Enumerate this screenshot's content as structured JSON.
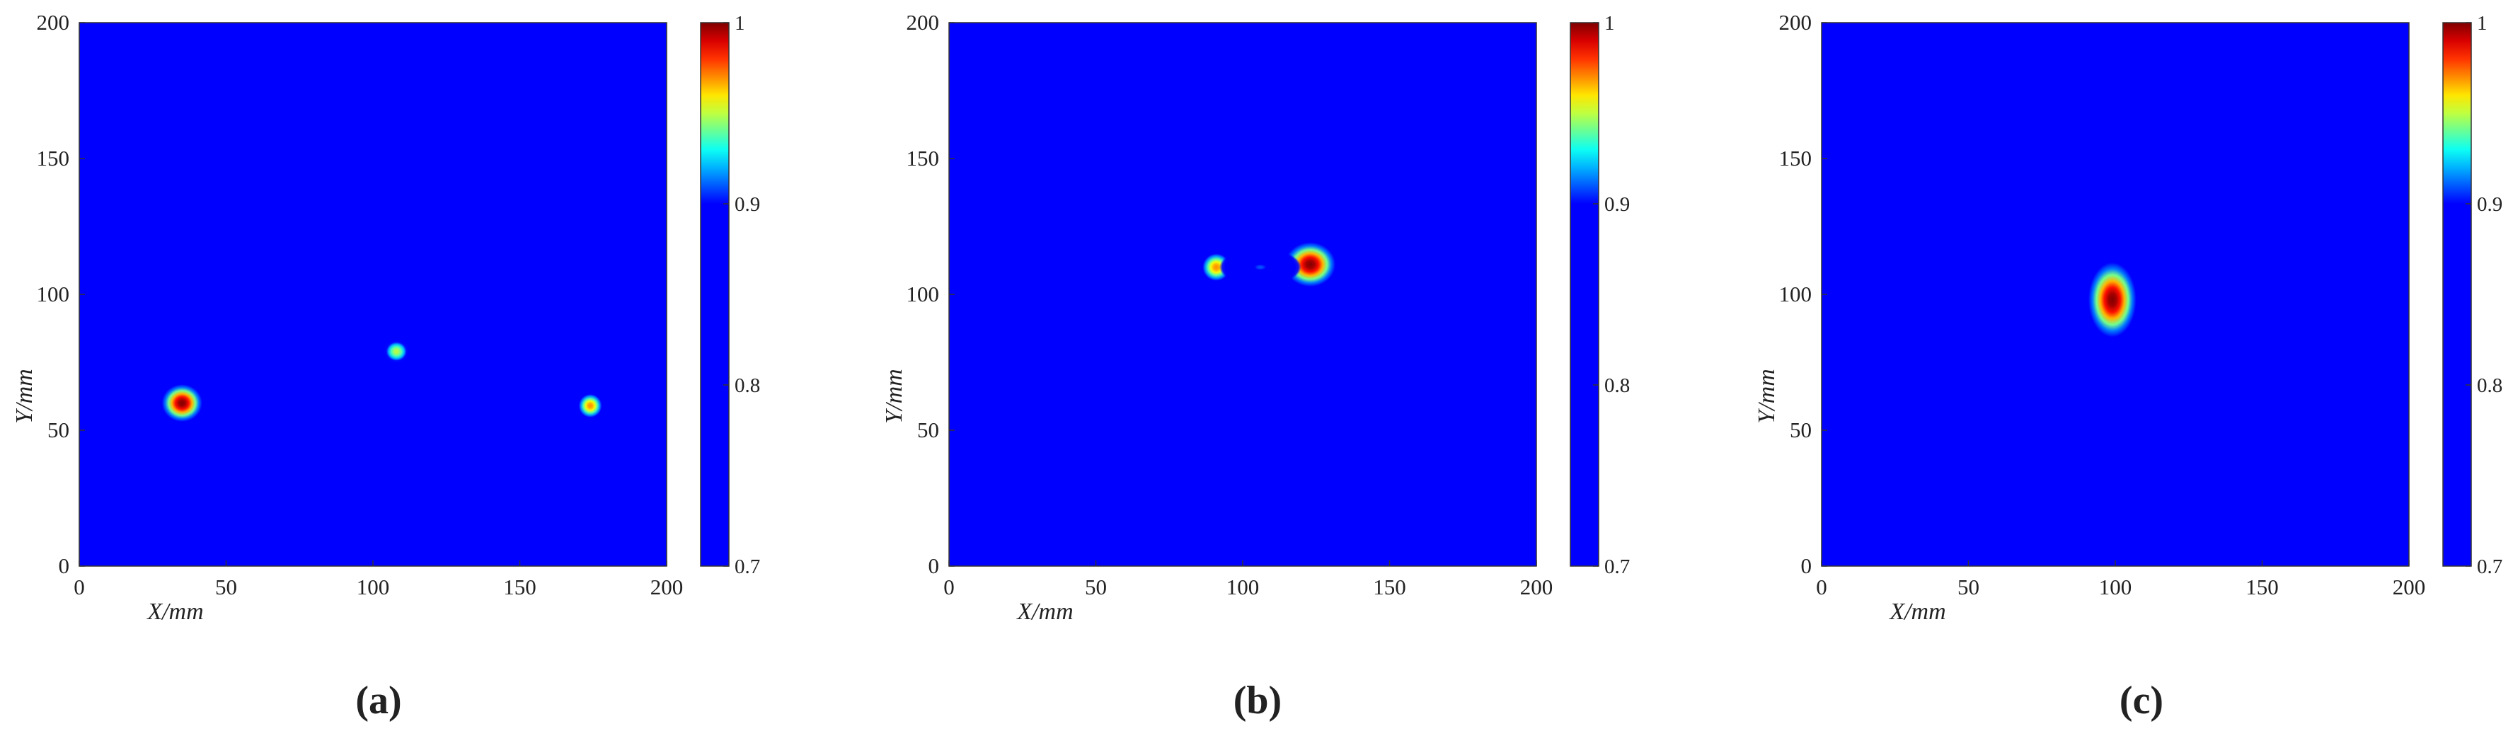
{
  "figure": {
    "panels": [
      {
        "caption": "(a)",
        "xlabel": "X/mm",
        "ylabel": "Y/mm"
      },
      {
        "caption": "(b)",
        "xlabel": "X/mm",
        "ylabel": "Y/mm"
      },
      {
        "caption": "(c)",
        "xlabel": "X/mm",
        "ylabel": "Y/mm"
      }
    ],
    "colors": {
      "background_field": "#00008b",
      "colormap": "jet"
    }
  },
  "chart_data": [
    {
      "type": "heatmap",
      "title": "",
      "xlabel": "X/mm",
      "ylabel": "Y/mm",
      "xlim": [
        0,
        200
      ],
      "ylim": [
        0,
        200
      ],
      "xticks": [
        0,
        50,
        100,
        150,
        200
      ],
      "yticks": [
        0,
        50,
        100,
        150,
        200
      ],
      "colorbar": {
        "range": [
          0.7,
          1
        ],
        "ticks": [
          0.7,
          0.8,
          0.9,
          1
        ],
        "tick_labels": [
          "0.7",
          "0.8",
          "0.9",
          "1"
        ],
        "colormap": "jet"
      },
      "background_value": 0.7,
      "blobs": [
        {
          "x": 35,
          "y": 60,
          "rx": 8,
          "ry": 8,
          "peak": 1.0
        },
        {
          "x": 108,
          "y": 79,
          "rx": 6,
          "ry": 6,
          "peak": 0.95
        },
        {
          "x": 174,
          "y": 59,
          "rx": 5.5,
          "ry": 6,
          "peak": 0.97
        }
      ]
    },
    {
      "type": "heatmap",
      "title": "",
      "xlabel": "X/mm",
      "ylabel": "Y/mm",
      "xlim": [
        0,
        200
      ],
      "ylim": [
        0,
        200
      ],
      "xticks": [
        0,
        50,
        100,
        150,
        200
      ],
      "yticks": [
        0,
        50,
        100,
        150,
        200
      ],
      "colorbar": {
        "range": [
          0.7,
          1
        ],
        "ticks": [
          0.7,
          0.8,
          0.9,
          1
        ],
        "tick_labels": [
          "0.7",
          "0.8",
          "0.9",
          "1"
        ],
        "colormap": "jet"
      },
      "background_value": 0.7,
      "blobs": [
        {
          "x": 91,
          "y": 110,
          "rx": 6.5,
          "ry": 7,
          "peak": 0.97
        },
        {
          "x": 123,
          "y": 111,
          "rx": 10,
          "ry": 9.5,
          "peak": 1.0
        },
        {
          "x": 106,
          "y": 110,
          "rx": 7,
          "ry": 3.5,
          "peak": 0.91
        }
      ]
    },
    {
      "type": "heatmap",
      "title": "",
      "xlabel": "X/mm",
      "ylabel": "Y/mm",
      "xlim": [
        0,
        200
      ],
      "ylim": [
        0,
        200
      ],
      "xticks": [
        0,
        50,
        100,
        150,
        200
      ],
      "yticks": [
        0,
        50,
        100,
        150,
        200
      ],
      "colorbar": {
        "range": [
          0.7,
          1
        ],
        "ticks": [
          0.7,
          0.8,
          0.9,
          1
        ],
        "tick_labels": [
          "0.7",
          "0.8",
          "0.9",
          "1"
        ],
        "colormap": "jet"
      },
      "background_value": 0.7,
      "blobs": [
        {
          "x": 99,
          "y": 98,
          "rx": 9.5,
          "ry": 16,
          "peak": 1.0
        }
      ]
    }
  ]
}
